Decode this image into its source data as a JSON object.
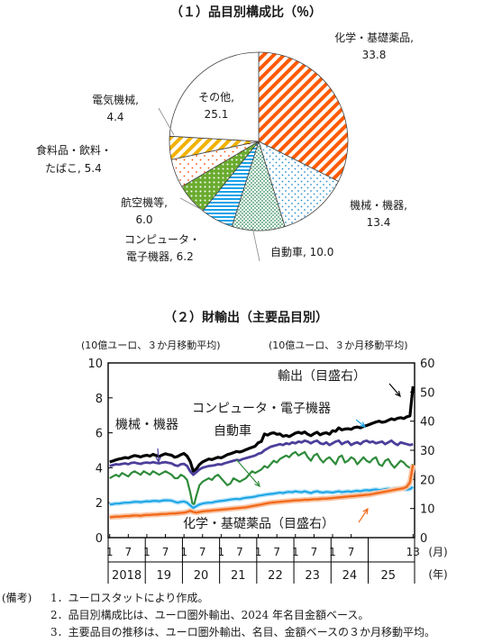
{
  "chart_data": [
    {
      "type": "pie",
      "title": "（１）品目別構成比（％）",
      "slices": [
        {
          "label": "化学・基礎薬品,",
          "value_text": "33.8",
          "value": 33.8,
          "pattern": "diagonal-stripes",
          "color": "#ff5a00"
        },
        {
          "label": "機械・機器,",
          "value_text": "13.4",
          "value": 13.4,
          "pattern": "dots",
          "color": "#2a8fd0"
        },
        {
          "label": "自動車,",
          "value_text": "10.0",
          "value": 10.0,
          "pattern": "dense-dots",
          "color": "#2e8b57"
        },
        {
          "label": "コンピュータ・",
          "label2": "電子機器,",
          "value_text": "6.2",
          "value": 6.2,
          "pattern": "horizontal-lines",
          "color": "#1aa3e8"
        },
        {
          "label": "航空機等,",
          "value_text": "6.0",
          "value": 6.0,
          "pattern": "dots-on-green",
          "color": "#6aab2e"
        },
        {
          "label": "食料品・飲料・",
          "label2": "たばこ,",
          "value_text": "5.4",
          "value": 5.4,
          "pattern": "sparse-dots",
          "color": "#ff4a00"
        },
        {
          "label": "電気機械,",
          "value_text": "4.4",
          "value": 4.4,
          "pattern": "diagonal-stripes-yellow",
          "color": "#f2b200"
        },
        {
          "label": "その他,",
          "value_text": "25.1",
          "value": 25.1,
          "pattern": "none",
          "color": "#ffffff"
        }
      ]
    },
    {
      "type": "line",
      "title": "（２）財輸出（主要品目別）",
      "ylabel_left": "(10億ユーロ、３か月移動平均)",
      "ylabel_right": "(10億ユーロ、３か月移動平均)",
      "ylim_left": [
        0,
        10
      ],
      "ylim_right": [
        0,
        60
      ],
      "yticks_left": [
        "0",
        "2",
        "4",
        "6",
        "8",
        "10"
      ],
      "yticks_right": [
        "0",
        "10",
        "20",
        "30",
        "40",
        "50",
        "60"
      ],
      "x_month_ticks": [
        "1",
        "7",
        "1",
        "7",
        "1",
        "7",
        "1",
        "7",
        "1",
        "7",
        "1",
        "7",
        "1",
        "7",
        "13"
      ],
      "x_year_ticks": [
        "2018",
        "19",
        "20",
        "21",
        "22",
        "23",
        "24",
        "25"
      ],
      "x_unit_month": "(月)",
      "x_unit_year": "(年)",
      "x_start": "2018-01",
      "series": [
        {
          "name": "輸出（目盛右）",
          "axis": "right",
          "color": "#000000",
          "values": [
            26.0,
            26.3,
            26.7,
            27.0,
            27.2,
            27.5,
            27.3,
            27.8,
            28.2,
            28.0,
            27.7,
            28.1,
            28.3,
            28.0,
            28.6,
            28.2,
            27.9,
            28.4,
            28.8,
            28.5,
            28.3,
            27.6,
            27.9,
            28.5,
            28.9,
            28.0,
            26.2,
            22.8,
            23.6,
            25.1,
            26.0,
            26.5,
            27.0,
            26.8,
            27.2,
            27.6,
            27.4,
            27.9,
            28.5,
            28.8,
            29.2,
            29.6,
            29.4,
            29.7,
            30.2,
            30.6,
            31.0,
            31.4,
            32.6,
            33.0,
            35.6,
            35.2,
            35.8,
            36.0,
            35.5,
            35.6,
            34.8,
            35.1,
            34.7,
            35.3,
            35.9,
            36.2,
            35.8,
            36.3,
            35.5,
            35.0,
            35.7,
            36.2,
            35.3,
            35.8,
            36.0,
            35.5,
            36.7,
            36.5,
            37.7,
            37.0,
            37.3,
            37.4,
            37.2,
            37.8,
            38.0,
            37.7,
            38.2,
            38.5,
            38.9,
            39.3,
            39.7,
            40.0,
            39.6,
            39.8,
            40.3,
            40.8,
            40.5,
            41.0,
            41.2,
            40.9,
            41.5,
            41.8,
            52.0
          ]
        },
        {
          "name": "機械・機器",
          "axis": "left",
          "color": "#4b3f9a",
          "values": [
            4.1,
            4.15,
            4.2,
            4.18,
            4.22,
            4.25,
            4.2,
            4.28,
            4.3,
            4.25,
            4.22,
            4.28,
            4.3,
            4.27,
            4.32,
            4.28,
            4.25,
            4.3,
            4.32,
            4.28,
            4.25,
            4.15,
            4.1,
            4.2,
            4.22,
            4.1,
            3.8,
            3.6,
            3.75,
            3.9,
            4.0,
            4.05,
            4.1,
            4.12,
            4.15,
            4.2,
            4.18,
            4.25,
            4.3,
            4.35,
            4.4,
            4.45,
            4.42,
            4.5,
            4.55,
            4.6,
            4.65,
            4.7,
            4.8,
            4.85,
            5.0,
            5.1,
            5.2,
            5.25,
            5.3,
            5.35,
            5.3,
            5.4,
            5.35,
            5.45,
            5.4,
            5.5,
            5.45,
            5.55,
            5.5,
            5.4,
            5.5,
            5.55,
            5.4,
            5.35,
            5.45,
            5.3,
            5.4,
            5.5,
            5.55,
            5.35,
            5.45,
            5.5,
            5.3,
            5.4,
            5.45,
            5.35,
            5.5,
            5.55,
            5.45,
            5.5,
            5.4,
            5.45,
            5.5,
            5.35,
            5.45,
            5.55,
            5.4,
            5.3,
            5.45,
            5.4,
            5.35,
            5.3,
            5.35
          ]
        },
        {
          "name": "自動車",
          "axis": "left",
          "color": "#2e8b3a",
          "values": [
            3.4,
            3.5,
            3.6,
            3.5,
            3.7,
            3.6,
            3.5,
            3.7,
            3.8,
            3.7,
            3.6,
            3.8,
            3.7,
            3.6,
            3.8,
            3.7,
            3.6,
            3.7,
            3.8,
            3.7,
            3.6,
            3.4,
            3.4,
            3.6,
            3.5,
            3.3,
            2.6,
            1.7,
            2.4,
            3.0,
            3.2,
            3.3,
            3.4,
            3.3,
            3.5,
            3.6,
            3.4,
            3.2,
            3.0,
            3.1,
            3.4,
            3.3,
            3.2,
            3.3,
            3.4,
            3.6,
            3.8,
            3.7,
            3.8,
            3.9,
            4.1,
            4.0,
            4.2,
            4.4,
            4.3,
            4.5,
            4.6,
            4.7,
            4.6,
            4.8,
            4.9,
            4.7,
            4.8,
            4.9,
            4.6,
            4.4,
            4.7,
            4.8,
            4.5,
            4.3,
            4.5,
            4.6,
            4.4,
            4.2,
            4.6,
            4.7,
            4.3,
            4.4,
            4.6,
            4.5,
            4.2,
            4.4,
            4.6,
            4.4,
            4.3,
            4.5,
            4.6,
            4.2,
            4.1,
            4.4,
            4.5,
            4.2,
            4.0,
            4.2,
            4.4,
            4.3,
            4.1,
            4.0,
            4.2
          ]
        },
        {
          "name": "コンピュータ・電子機器",
          "axis": "left",
          "color": "#1ea6e6",
          "values": [
            1.9,
            1.92,
            1.95,
            1.95,
            1.98,
            2.0,
            2.0,
            2.02,
            2.05,
            2.05,
            2.03,
            2.06,
            2.08,
            2.07,
            2.1,
            2.1,
            2.08,
            2.12,
            2.14,
            2.13,
            2.12,
            2.05,
            2.0,
            2.05,
            2.07,
            2.0,
            1.85,
            1.7,
            1.8,
            1.9,
            1.95,
            1.98,
            2.0,
            2.0,
            2.05,
            2.08,
            2.1,
            2.12,
            2.15,
            2.18,
            2.2,
            2.22,
            2.2,
            2.25,
            2.28,
            2.3,
            2.32,
            2.35,
            2.4,
            2.42,
            2.45,
            2.48,
            2.5,
            2.52,
            2.55,
            2.58,
            2.55,
            2.6,
            2.62,
            2.6,
            2.65,
            2.62,
            2.6,
            2.65,
            2.6,
            2.55,
            2.62,
            2.65,
            2.6,
            2.58,
            2.62,
            2.6,
            2.58,
            2.62,
            2.65,
            2.6,
            2.63,
            2.65,
            2.62,
            2.66,
            2.68,
            2.65,
            2.7,
            2.72,
            2.7,
            2.74,
            2.76,
            2.72,
            2.74,
            2.78,
            2.8,
            2.76,
            2.8,
            2.82,
            2.8,
            2.78,
            2.75,
            2.78,
            2.9
          ]
        },
        {
          "name": "化学・基礎薬品（目盛右）",
          "axis": "right",
          "color": "#f26a1b",
          "values": [
            7.0,
            7.1,
            7.2,
            7.2,
            7.3,
            7.4,
            7.4,
            7.5,
            7.6,
            7.6,
            7.5,
            7.7,
            7.8,
            7.8,
            7.9,
            7.9,
            8.0,
            8.1,
            8.1,
            8.2,
            8.3,
            8.3,
            8.4,
            8.5,
            8.6,
            8.8,
            9.2,
            8.8,
            8.6,
            8.8,
            9.0,
            9.1,
            9.2,
            9.3,
            9.4,
            9.5,
            9.6,
            9.7,
            9.8,
            9.9,
            10.0,
            10.1,
            10.2,
            10.3,
            10.4,
            10.6,
            10.8,
            11.0,
            11.2,
            11.4,
            11.6,
            11.8,
            12.0,
            12.1,
            12.2,
            12.3,
            12.4,
            12.5,
            12.6,
            12.7,
            12.8,
            12.8,
            12.9,
            13.0,
            13.0,
            13.1,
            13.2,
            13.2,
            13.3,
            13.4,
            13.4,
            13.5,
            13.6,
            13.7,
            13.8,
            13.9,
            14.0,
            14.1,
            14.2,
            14.3,
            14.4,
            14.5,
            14.6,
            14.7,
            14.8,
            15.0,
            15.2,
            15.4,
            15.6,
            15.8,
            16.0,
            16.2,
            16.4,
            16.6,
            16.8,
            17.0,
            17.5,
            19.0,
            25.0
          ]
        }
      ],
      "annotations": [
        {
          "text": "輸出（目盛右）",
          "series": "輸出（目盛右）"
        },
        {
          "text": "コンピュータ・電子機器",
          "series": "コンピュータ・電子機器"
        },
        {
          "text": "機械・機器",
          "series": "機械・機器"
        },
        {
          "text": "自動車",
          "series": "自動車"
        },
        {
          "text": "化学・基礎薬品（目盛右）",
          "series": "化学・基礎薬品（目盛右）"
        }
      ]
    }
  ],
  "notes": {
    "prefix": "(備考)",
    "items": [
      "1．ユーロスタットにより作成。",
      "2．品目別構成比は、ユーロ圏外輸出、2024 年名目金額ベース。",
      "3．主要品目の推移は、ユーロ圏外輸出、名目、金額ベースの３か月移動平均。"
    ]
  }
}
